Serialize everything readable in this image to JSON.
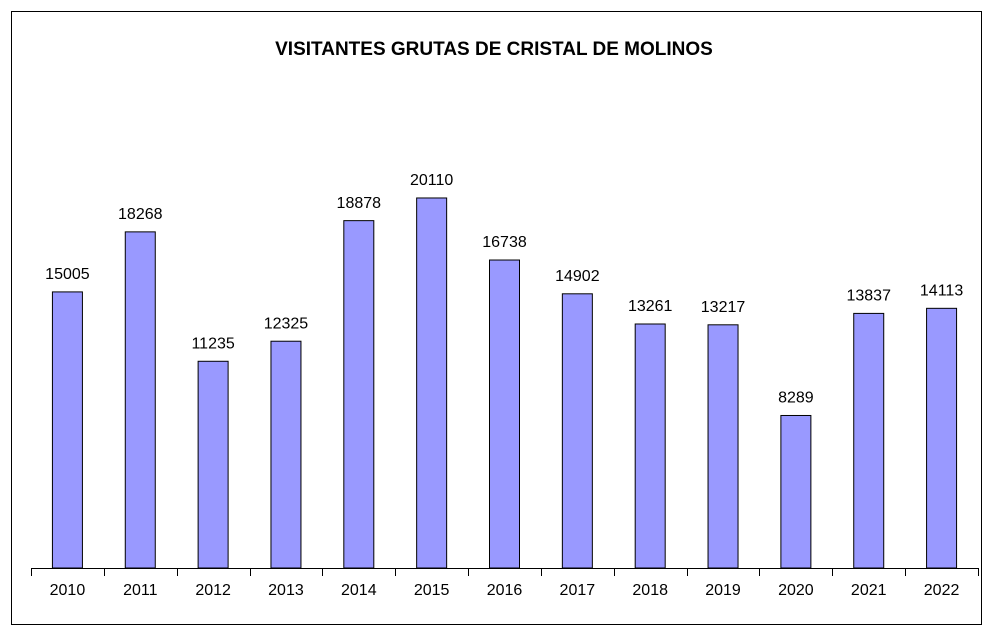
{
  "chart_data": {
    "type": "bar",
    "title": "VISITANTES GRUTAS DE CRISTAL DE MOLINOS",
    "categories": [
      "2010",
      "2011",
      "2012",
      "2013",
      "2014",
      "2015",
      "2016",
      "2017",
      "2018",
      "2019",
      "2020",
      "2021",
      "2022"
    ],
    "values": [
      15005,
      18268,
      11235,
      12325,
      18878,
      20110,
      16738,
      14902,
      13261,
      13217,
      8289,
      13837,
      14113
    ],
    "color": "#9999ff",
    "ylim": [
      0,
      25000
    ]
  }
}
